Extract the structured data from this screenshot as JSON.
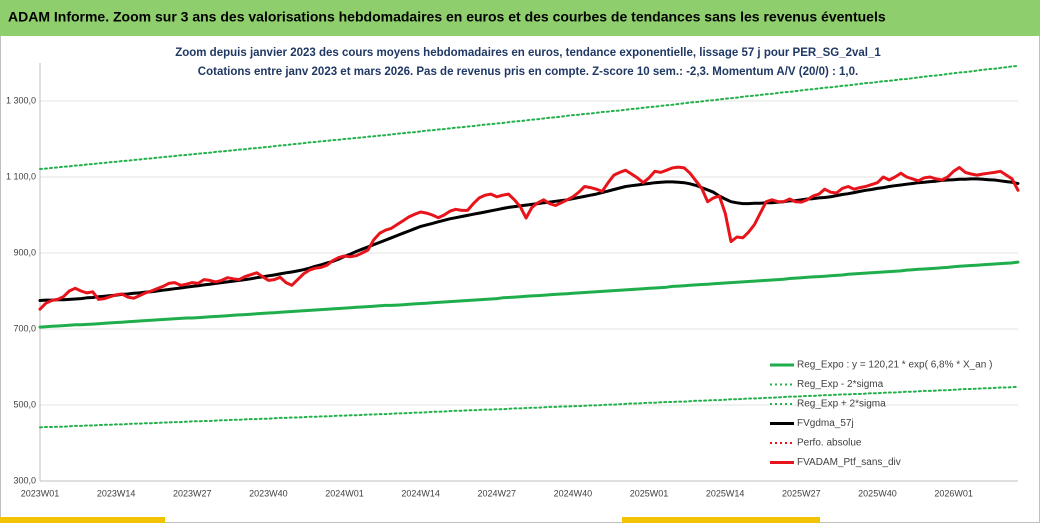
{
  "header": {
    "title": "ADAM Informe. Zoom sur 3 ans des valorisations hebdomadaires en euros et des courbes de tendances sans les revenus éventuels"
  },
  "chart_data": {
    "type": "line",
    "title": "Zoom depuis janvier 2023 des cours moyens hebdomadaires  en euros, tendance exponentielle, lissage 57 j pour PER_SG_2val_1",
    "subtitle": "Cotations  entre janv 2023 et mars 2026. Pas de revenus pris en compte. Z-score 10 sem.: -2,3. Momentum A/V (20/0) : 1,0.",
    "categories": [
      "2023W01",
      null,
      null,
      null,
      null,
      null,
      null,
      null,
      null,
      null,
      null,
      null,
      null,
      "2023W14",
      null,
      null,
      null,
      null,
      null,
      null,
      null,
      null,
      null,
      null,
      null,
      null,
      "2023W27",
      null,
      null,
      null,
      null,
      null,
      null,
      null,
      null,
      null,
      null,
      null,
      null,
      "2023W40",
      null,
      null,
      null,
      null,
      null,
      null,
      null,
      null,
      null,
      null,
      null,
      null,
      "2024W01",
      null,
      null,
      null,
      null,
      null,
      null,
      null,
      null,
      null,
      null,
      null,
      null,
      "2024W14",
      null,
      null,
      null,
      null,
      null,
      null,
      null,
      null,
      null,
      null,
      null,
      null,
      "2024W27",
      null,
      null,
      null,
      null,
      null,
      null,
      null,
      null,
      null,
      null,
      null,
      null,
      "2024W40",
      null,
      null,
      null,
      null,
      null,
      null,
      null,
      null,
      null,
      null,
      null,
      null,
      "2025W01",
      null,
      null,
      null,
      null,
      null,
      null,
      null,
      null,
      null,
      null,
      null,
      null,
      "2025W14",
      null,
      null,
      null,
      null,
      null,
      null,
      null,
      null,
      null,
      null,
      null,
      null,
      "2025W27",
      null,
      null,
      null,
      null,
      null,
      null,
      null,
      null,
      null,
      null,
      null,
      null,
      "2025W40",
      null,
      null,
      null,
      null,
      null,
      null,
      null,
      null,
      null,
      null,
      null,
      null,
      "2026W01",
      null,
      null,
      null,
      null,
      null,
      null,
      null,
      null,
      null,
      null,
      null
    ],
    "ylim": [
      300,
      1400
    ],
    "yticks": [
      {
        "value": 300,
        "label": "300,0"
      },
      {
        "value": 500,
        "label": "500,0"
      },
      {
        "value": 700,
        "label": "700,0"
      },
      {
        "value": 900,
        "label": "900,0"
      },
      {
        "value": 1100,
        "label": "1 100,0"
      },
      {
        "value": 1300,
        "label": "1 300,0"
      }
    ],
    "grid": true,
    "legend": "lower right",
    "series": [
      {
        "name": "Reg_Expo : y = 120,21 * exp( 6,8% *  X_an )",
        "color": "#1fae4c",
        "style": "solid",
        "values": [
          705,
          706,
          707,
          708,
          709,
          710,
          711,
          711,
          712,
          713,
          714,
          715,
          716,
          717,
          718,
          719,
          720,
          721,
          722,
          723,
          724,
          725,
          726,
          727,
          728,
          729,
          729,
          730,
          731,
          732,
          733,
          734,
          735,
          736,
          737,
          738,
          739,
          740,
          741,
          742,
          743,
          744,
          745,
          746,
          747,
          748,
          749,
          750,
          751,
          752,
          753,
          754,
          755,
          756,
          757,
          758,
          759,
          760,
          761,
          762,
          762,
          763,
          764,
          765,
          766,
          767,
          768,
          769,
          770,
          771,
          772,
          773,
          774,
          775,
          776,
          777,
          778,
          779,
          780,
          782,
          783,
          784,
          785,
          786,
          787,
          788,
          789,
          790,
          791,
          792,
          793,
          794,
          795,
          796,
          797,
          798,
          799,
          800,
          801,
          802,
          803,
          804,
          805,
          806,
          807,
          808,
          809,
          810,
          812,
          813,
          814,
          815,
          816,
          817,
          818,
          819,
          820,
          821,
          822,
          823,
          824,
          825,
          826,
          827,
          828,
          829,
          830,
          831,
          833,
          834,
          835,
          836,
          837,
          838,
          839,
          840,
          841,
          842,
          844,
          845,
          846,
          847,
          848,
          849,
          850,
          851,
          852,
          853,
          855,
          856,
          857,
          858,
          859,
          860,
          861,
          862,
          864,
          865,
          866,
          867,
          868,
          869,
          870,
          871,
          872,
          873,
          874,
          876
        ]
      },
      {
        "name": "Reg_Exp - 2*sigma",
        "color": "#22b04a",
        "style": "dotted",
        "values": [
          441,
          442,
          442,
          443,
          443,
          444,
          445,
          445,
          446,
          446,
          447,
          448,
          448,
          449,
          449,
          450,
          451,
          451,
          452,
          452,
          453,
          454,
          454,
          455,
          455,
          456,
          457,
          457,
          458,
          458,
          459,
          460,
          460,
          461,
          461,
          462,
          463,
          463,
          464,
          464,
          465,
          466,
          466,
          467,
          467,
          468,
          469,
          469,
          470,
          470,
          471,
          472,
          472,
          473,
          473,
          474,
          475,
          475,
          476,
          476,
          477,
          478,
          478,
          479,
          480,
          480,
          481,
          482,
          482,
          483,
          484,
          485,
          485,
          486,
          486,
          487,
          488,
          488,
          489,
          489,
          490,
          491,
          491,
          492,
          493,
          493,
          494,
          495,
          495,
          496,
          496,
          497,
          497,
          498,
          499,
          499,
          500,
          501,
          501,
          502,
          503,
          504,
          504,
          505,
          506,
          506,
          507,
          508,
          508,
          509,
          509,
          510,
          511,
          511,
          512,
          513,
          513,
          514,
          515,
          515,
          516,
          517,
          517,
          518,
          519,
          519,
          520,
          521,
          522,
          522,
          523,
          524,
          524,
          525,
          526,
          526,
          527,
          528,
          528,
          529,
          529,
          530,
          531,
          531,
          532,
          533,
          533,
          534,
          535,
          535,
          536,
          537,
          537,
          538,
          539,
          539,
          540,
          541,
          542,
          542,
          543,
          544,
          544,
          545,
          546,
          546,
          547,
          548
        ]
      },
      {
        "name": "Reg_Exp + 2*sigma",
        "color": "#22b04a",
        "style": "dotted",
        "values": [
          1121,
          1122,
          1124,
          1125,
          1127,
          1128,
          1130,
          1131,
          1133,
          1134,
          1136,
          1137,
          1139,
          1140,
          1142,
          1143,
          1145,
          1146,
          1148,
          1149,
          1151,
          1152,
          1154,
          1155,
          1157,
          1158,
          1160,
          1161,
          1163,
          1164,
          1166,
          1167,
          1169,
          1170,
          1172,
          1173,
          1175,
          1176,
          1178,
          1179,
          1181,
          1183,
          1184,
          1186,
          1187,
          1189,
          1191,
          1192,
          1194,
          1195,
          1197,
          1198,
          1200,
          1201,
          1203,
          1204,
          1206,
          1207,
          1209,
          1210,
          1212,
          1214,
          1215,
          1217,
          1218,
          1220,
          1222,
          1223,
          1225,
          1226,
          1228,
          1230,
          1231,
          1233,
          1234,
          1236,
          1238,
          1239,
          1241,
          1242,
          1244,
          1246,
          1247,
          1249,
          1251,
          1252,
          1254,
          1256,
          1257,
          1259,
          1261,
          1263,
          1264,
          1266,
          1267,
          1269,
          1271,
          1272,
          1274,
          1275,
          1277,
          1279,
          1280,
          1282,
          1284,
          1285,
          1287,
          1289,
          1290,
          1292,
          1294,
          1296,
          1297,
          1299,
          1301,
          1302,
          1304,
          1306,
          1307,
          1309,
          1311,
          1313,
          1314,
          1316,
          1318,
          1319,
          1321,
          1323,
          1324,
          1326,
          1328,
          1330,
          1331,
          1333,
          1335,
          1336,
          1338,
          1340,
          1341,
          1343,
          1345,
          1347,
          1348,
          1350,
          1352,
          1353,
          1355,
          1357,
          1358,
          1360,
          1362,
          1364,
          1366,
          1367,
          1369,
          1371,
          1373,
          1375,
          1376,
          1378,
          1380,
          1382,
          1384,
          1385,
          1387,
          1389,
          1391,
          1392
        ]
      },
      {
        "name": "FVgdma_57j",
        "color": "#000000",
        "style": "solid",
        "values": [
          775,
          776,
          776,
          777,
          777,
          778,
          779,
          780,
          782,
          783,
          785,
          786,
          788,
          789,
          791,
          792,
          794,
          795,
          797,
          798,
          800,
          802,
          804,
          806,
          808,
          810,
          812,
          814,
          816,
          818,
          820,
          822,
          824,
          826,
          828,
          830,
          832,
          835,
          837,
          840,
          842,
          845,
          848,
          850,
          853,
          856,
          860,
          865,
          869,
          874,
          878,
          884,
          891,
          897,
          904,
          910,
          916,
          922,
          928,
          934,
          940,
          946,
          952,
          958,
          964,
          970,
          974,
          978,
          982,
          986,
          990,
          993,
          996,
          999,
          1002,
          1005,
          1008,
          1011,
          1014,
          1017,
          1020,
          1022,
          1024,
          1026,
          1028,
          1030,
          1032,
          1034,
          1036,
          1038,
          1040,
          1043,
          1046,
          1049,
          1052,
          1055,
          1059,
          1063,
          1067,
          1071,
          1075,
          1077,
          1079,
          1081,
          1083,
          1085,
          1086,
          1087,
          1087,
          1086,
          1085,
          1082,
          1078,
          1072,
          1066,
          1060,
          1050,
          1042,
          1035,
          1032,
          1030,
          1030,
          1031,
          1031,
          1032,
          1032,
          1034,
          1035,
          1037,
          1038,
          1040,
          1042,
          1043,
          1045,
          1046,
          1048,
          1051,
          1054,
          1056,
          1059,
          1062,
          1065,
          1067,
          1070,
          1072,
          1075,
          1077,
          1079,
          1081,
          1083,
          1085,
          1086,
          1088,
          1089,
          1091,
          1092,
          1093,
          1094,
          1094,
          1095,
          1095,
          1094,
          1093,
          1092,
          1090,
          1088,
          1086,
          1083
        ]
      },
      {
        "name": "Perfo. absolue",
        "color": "#e8141b",
        "style": "dotted",
        "values": [
          752,
          768,
          775,
          778,
          785,
          800,
          807,
          800,
          795,
          798,
          778,
          780,
          785,
          790,
          792,
          784,
          781,
          788,
          795,
          800,
          806,
          812,
          820,
          822,
          815,
          818,
          822,
          820,
          830,
          828,
          824,
          828,
          835,
          832,
          830,
          838,
          843,
          848,
          838,
          828,
          830,
          836,
          822,
          815,
          830,
          845,
          855,
          860,
          862,
          868,
          880,
          888,
          892,
          890,
          893,
          900,
          908,
          935,
          952,
          960,
          965,
          975,
          985,
          995,
          1002,
          1008,
          1005,
          1000,
          993,
          1000,
          1010,
          1015,
          1012,
          1012,
          1030,
          1045,
          1052,
          1055,
          1048,
          1052,
          1055,
          1040,
          1022,
          992,
          1020,
          1032,
          1040,
          1030,
          1025,
          1032,
          1040,
          1048,
          1060,
          1075,
          1072,
          1068,
          1062,
          1085,
          1105,
          1112,
          1118,
          1108,
          1098,
          1085,
          1098,
          1115,
          1112,
          1118,
          1124,
          1126,
          1124,
          1110,
          1090,
          1070,
          1035,
          1045,
          1050,
          1005,
          930,
          942,
          940,
          955,
          975,
          1005,
          1035,
          1040,
          1035,
          1035,
          1042,
          1035,
          1034,
          1040,
          1050,
          1055,
          1068,
          1060,
          1058,
          1070,
          1075,
          1068,
          1072,
          1075,
          1080,
          1085,
          1100,
          1092,
          1100,
          1110,
          1100,
          1095,
          1090,
          1098,
          1100,
          1095,
          1092,
          1100,
          1115,
          1125,
          1112,
          1108,
          1105,
          1108,
          1110,
          1112,
          1115,
          1105,
          1095,
          1065
        ]
      },
      {
        "name": "FVADAM_Ptf_sans_div",
        "color": "#e8141b",
        "style": "solid",
        "values": [
          752,
          768,
          775,
          778,
          785,
          800,
          807,
          800,
          795,
          798,
          778,
          780,
          785,
          790,
          792,
          784,
          781,
          788,
          795,
          800,
          806,
          812,
          820,
          822,
          815,
          818,
          822,
          820,
          830,
          828,
          824,
          828,
          835,
          832,
          830,
          838,
          843,
          848,
          838,
          828,
          830,
          836,
          822,
          815,
          830,
          845,
          855,
          860,
          862,
          868,
          880,
          888,
          892,
          890,
          893,
          900,
          908,
          935,
          952,
          960,
          965,
          975,
          985,
          995,
          1002,
          1008,
          1005,
          1000,
          993,
          1000,
          1010,
          1015,
          1012,
          1012,
          1030,
          1045,
          1052,
          1055,
          1048,
          1052,
          1055,
          1040,
          1022,
          992,
          1020,
          1032,
          1040,
          1030,
          1025,
          1032,
          1040,
          1048,
          1060,
          1075,
          1072,
          1068,
          1062,
          1085,
          1105,
          1112,
          1118,
          1108,
          1098,
          1085,
          1098,
          1115,
          1112,
          1118,
          1124,
          1126,
          1124,
          1110,
          1090,
          1070,
          1035,
          1045,
          1050,
          1005,
          930,
          942,
          940,
          955,
          975,
          1005,
          1035,
          1040,
          1035,
          1035,
          1042,
          1035,
          1034,
          1040,
          1050,
          1055,
          1068,
          1060,
          1058,
          1070,
          1075,
          1068,
          1072,
          1075,
          1080,
          1085,
          1100,
          1092,
          1100,
          1110,
          1100,
          1095,
          1090,
          1098,
          1100,
          1095,
          1092,
          1100,
          1115,
          1125,
          1112,
          1108,
          1105,
          1108,
          1110,
          1112,
          1115,
          1105,
          1095,
          1065
        ]
      }
    ]
  }
}
